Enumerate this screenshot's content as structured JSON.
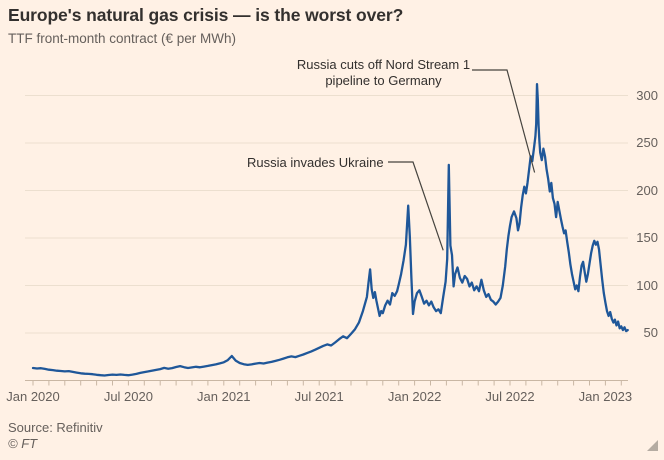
{
  "title": "Europe's natural gas crisis — is the worst over?",
  "subtitle": "TTF front-month contract (€ per MWh)",
  "footer": {
    "source": "Source: Refinitiv",
    "copyright": "© FT"
  },
  "colors": {
    "background": "#FFF1E5",
    "line": "#1F5799",
    "title_text": "#33302E",
    "muted_text": "#66605C",
    "grid": "#ECDFCF",
    "axis": "#C9B7A4",
    "connector": "#46443F",
    "corner_triangle": "#B5ACA2"
  },
  "chart_data": {
    "type": "line",
    "title": "Europe's natural gas crisis — is the worst over?",
    "subtitle": "TTF front-month contract (€ per MWh)",
    "xlabel": "",
    "ylabel": "€ per MWh",
    "x_unit": "months since Jan 2020",
    "x_range_months": [
      0,
      37.4
    ],
    "ylim": [
      0,
      330
    ],
    "grid": "horizontal-only",
    "y_axis": {
      "side": "right",
      "ticks": [
        50,
        100,
        150,
        200,
        250,
        300
      ]
    },
    "x_axis": {
      "tick_labels": [
        "Jan 2020",
        "Jul 2020",
        "Jan 2021",
        "Jul 2021",
        "Jan 2022",
        "Jul 2022",
        "Jan 2023"
      ],
      "tick_label_months": [
        0,
        6,
        12,
        18,
        24,
        30,
        36
      ],
      "minor_tick_every_months": 1
    },
    "annotations": [
      {
        "text": "Russia invades Ukraine",
        "text_lines": [
          "Russia invades Ukraine"
        ],
        "target_month": 25.8,
        "target_value": 137
      },
      {
        "text": "Russia cuts off Nord Stream 1 pipeline to Germany",
        "text_lines": [
          "Russia cuts off Nord Stream 1",
          "pipeline to Germany"
        ],
        "target_month": 31.55,
        "target_value": 219
      }
    ],
    "series": [
      {
        "name": "TTF front-month price (€ per MWh)",
        "color": "#1F5799",
        "points": [
          [
            0,
            13.2
          ],
          [
            0.25,
            12.6
          ],
          [
            0.5,
            12.9
          ],
          [
            0.75,
            12.2
          ],
          [
            1,
            11.4
          ],
          [
            1.25,
            11
          ],
          [
            1.5,
            10.3
          ],
          [
            1.75,
            10
          ],
          [
            2,
            9.6
          ],
          [
            2.25,
            9.9
          ],
          [
            2.5,
            9
          ],
          [
            2.75,
            8.3
          ],
          [
            3,
            7.6
          ],
          [
            3.25,
            7.2
          ],
          [
            3.5,
            7
          ],
          [
            3.75,
            6.6
          ],
          [
            4,
            6
          ],
          [
            4.25,
            5.6
          ],
          [
            4.5,
            5.3
          ],
          [
            4.75,
            5.8
          ],
          [
            5,
            6.2
          ],
          [
            5.25,
            5.9
          ],
          [
            5.5,
            6.3
          ],
          [
            5.75,
            5.9
          ],
          [
            6,
            5.6
          ],
          [
            6.25,
            6.2
          ],
          [
            6.5,
            7
          ],
          [
            6.75,
            8
          ],
          [
            7,
            8.8
          ],
          [
            7.25,
            9.6
          ],
          [
            7.5,
            10.4
          ],
          [
            7.75,
            11.2
          ],
          [
            8,
            12
          ],
          [
            8.25,
            13.3
          ],
          [
            8.5,
            12.4
          ],
          [
            8.75,
            13
          ],
          [
            9,
            14.2
          ],
          [
            9.25,
            15.2
          ],
          [
            9.5,
            14
          ],
          [
            9.75,
            13.2
          ],
          [
            10,
            13.8
          ],
          [
            10.25,
            14.4
          ],
          [
            10.5,
            13.9
          ],
          [
            10.75,
            14.6
          ],
          [
            11,
            15.4
          ],
          [
            11.25,
            16.2
          ],
          [
            11.5,
            17
          ],
          [
            11.75,
            18
          ],
          [
            12,
            19.2
          ],
          [
            12.25,
            21.5
          ],
          [
            12.5,
            25.8
          ],
          [
            12.75,
            21
          ],
          [
            13,
            18.4
          ],
          [
            13.25,
            17.2
          ],
          [
            13.5,
            16.4
          ],
          [
            13.75,
            17
          ],
          [
            14,
            17.8
          ],
          [
            14.25,
            18.4
          ],
          [
            14.5,
            17.9
          ],
          [
            14.75,
            18.8
          ],
          [
            15,
            19.6
          ],
          [
            15.25,
            20.6
          ],
          [
            15.5,
            21.8
          ],
          [
            15.75,
            23
          ],
          [
            16,
            24.4
          ],
          [
            16.25,
            25.4
          ],
          [
            16.5,
            24.6
          ],
          [
            16.75,
            26
          ],
          [
            17,
            27.4
          ],
          [
            17.25,
            29
          ],
          [
            17.5,
            30.6
          ],
          [
            17.75,
            32.4
          ],
          [
            18,
            34.4
          ],
          [
            18.25,
            36.4
          ],
          [
            18.5,
            38
          ],
          [
            18.75,
            36.8
          ],
          [
            19,
            40
          ],
          [
            19.25,
            43.5
          ],
          [
            19.5,
            46.5
          ],
          [
            19.75,
            44.5
          ],
          [
            20,
            49
          ],
          [
            20.25,
            54
          ],
          [
            20.5,
            61
          ],
          [
            20.75,
            73
          ],
          [
            21,
            88
          ],
          [
            21.1,
            103
          ],
          [
            21.2,
            117
          ],
          [
            21.3,
            96
          ],
          [
            21.4,
            87
          ],
          [
            21.5,
            93
          ],
          [
            21.6,
            84
          ],
          [
            21.7,
            76
          ],
          [
            21.8,
            68
          ],
          [
            21.9,
            73
          ],
          [
            22,
            71
          ],
          [
            22.15,
            79
          ],
          [
            22.3,
            84
          ],
          [
            22.45,
            80
          ],
          [
            22.6,
            92
          ],
          [
            22.75,
            89
          ],
          [
            22.9,
            94
          ],
          [
            23,
            101
          ],
          [
            23.15,
            112
          ],
          [
            23.3,
            126
          ],
          [
            23.45,
            143
          ],
          [
            23.6,
            184
          ],
          [
            23.7,
            152
          ],
          [
            23.8,
            108
          ],
          [
            23.9,
            70
          ],
          [
            24,
            83
          ],
          [
            24.15,
            92
          ],
          [
            24.3,
            95
          ],
          [
            24.45,
            88
          ],
          [
            24.6,
            81
          ],
          [
            24.75,
            84
          ],
          [
            24.9,
            79
          ],
          [
            25.05,
            83
          ],
          [
            25.2,
            77
          ],
          [
            25.35,
            73
          ],
          [
            25.5,
            75
          ],
          [
            25.65,
            71
          ],
          [
            25.8,
            88
          ],
          [
            25.95,
            104
          ],
          [
            26.05,
            128
          ],
          [
            26.15,
            227
          ],
          [
            26.25,
            142
          ],
          [
            26.35,
            132
          ],
          [
            26.45,
            99
          ],
          [
            26.55,
            112
          ],
          [
            26.7,
            119
          ],
          [
            26.85,
            108
          ],
          [
            27,
            103
          ],
          [
            27.15,
            110
          ],
          [
            27.3,
            107
          ],
          [
            27.45,
            99
          ],
          [
            27.6,
            103
          ],
          [
            27.75,
            95
          ],
          [
            27.9,
            99
          ],
          [
            28.05,
            94
          ],
          [
            28.2,
            106
          ],
          [
            28.35,
            95
          ],
          [
            28.5,
            88
          ],
          [
            28.65,
            91
          ],
          [
            28.8,
            85
          ],
          [
            28.95,
            83
          ],
          [
            29.1,
            80
          ],
          [
            29.25,
            83
          ],
          [
            29.4,
            87
          ],
          [
            29.55,
            100
          ],
          [
            29.7,
            120
          ],
          [
            29.8,
            138
          ],
          [
            29.9,
            152
          ],
          [
            30,
            163
          ],
          [
            30.1,
            172
          ],
          [
            30.25,
            178
          ],
          [
            30.4,
            171
          ],
          [
            30.5,
            158
          ],
          [
            30.6,
            165
          ],
          [
            30.7,
            182
          ],
          [
            30.8,
            195
          ],
          [
            30.9,
            204
          ],
          [
            31,
            197
          ],
          [
            31.1,
            208
          ],
          [
            31.2,
            222
          ],
          [
            31.3,
            236
          ],
          [
            31.4,
            231
          ],
          [
            31.5,
            244
          ],
          [
            31.6,
            257
          ],
          [
            31.65,
            270
          ],
          [
            31.7,
            312
          ],
          [
            31.75,
            296
          ],
          [
            31.8,
            268
          ],
          [
            31.85,
            252
          ],
          [
            31.9,
            240
          ],
          [
            32,
            232
          ],
          [
            32.1,
            244
          ],
          [
            32.2,
            236
          ],
          [
            32.3,
            222
          ],
          [
            32.4,
            212
          ],
          [
            32.5,
            199
          ],
          [
            32.6,
            208
          ],
          [
            32.7,
            192
          ],
          [
            32.8,
            186
          ],
          [
            32.9,
            172
          ],
          [
            33,
            188
          ],
          [
            33.1,
            179
          ],
          [
            33.2,
            170
          ],
          [
            33.3,
            162
          ],
          [
            33.4,
            155
          ],
          [
            33.5,
            158
          ],
          [
            33.6,
            146
          ],
          [
            33.7,
            135
          ],
          [
            33.8,
            122
          ],
          [
            33.9,
            112
          ],
          [
            34,
            104
          ],
          [
            34.1,
            96
          ],
          [
            34.2,
            100
          ],
          [
            34.3,
            94
          ],
          [
            34.4,
            109
          ],
          [
            34.5,
            121
          ],
          [
            34.6,
            125
          ],
          [
            34.7,
            114
          ],
          [
            34.8,
            104
          ],
          [
            34.9,
            112
          ],
          [
            35,
            123
          ],
          [
            35.1,
            134
          ],
          [
            35.2,
            142
          ],
          [
            35.3,
            147
          ],
          [
            35.4,
            143
          ],
          [
            35.5,
            146
          ],
          [
            35.6,
            138
          ],
          [
            35.7,
            122
          ],
          [
            35.8,
            106
          ],
          [
            35.9,
            92
          ],
          [
            36,
            82
          ],
          [
            36.1,
            73
          ],
          [
            36.2,
            68
          ],
          [
            36.3,
            72
          ],
          [
            36.4,
            65
          ],
          [
            36.5,
            61
          ],
          [
            36.6,
            64
          ],
          [
            36.7,
            58
          ],
          [
            36.8,
            62
          ],
          [
            36.9,
            55
          ],
          [
            37,
            57
          ],
          [
            37.1,
            53
          ],
          [
            37.2,
            56
          ],
          [
            37.3,
            52
          ],
          [
            37.4,
            53
          ]
        ]
      }
    ]
  }
}
